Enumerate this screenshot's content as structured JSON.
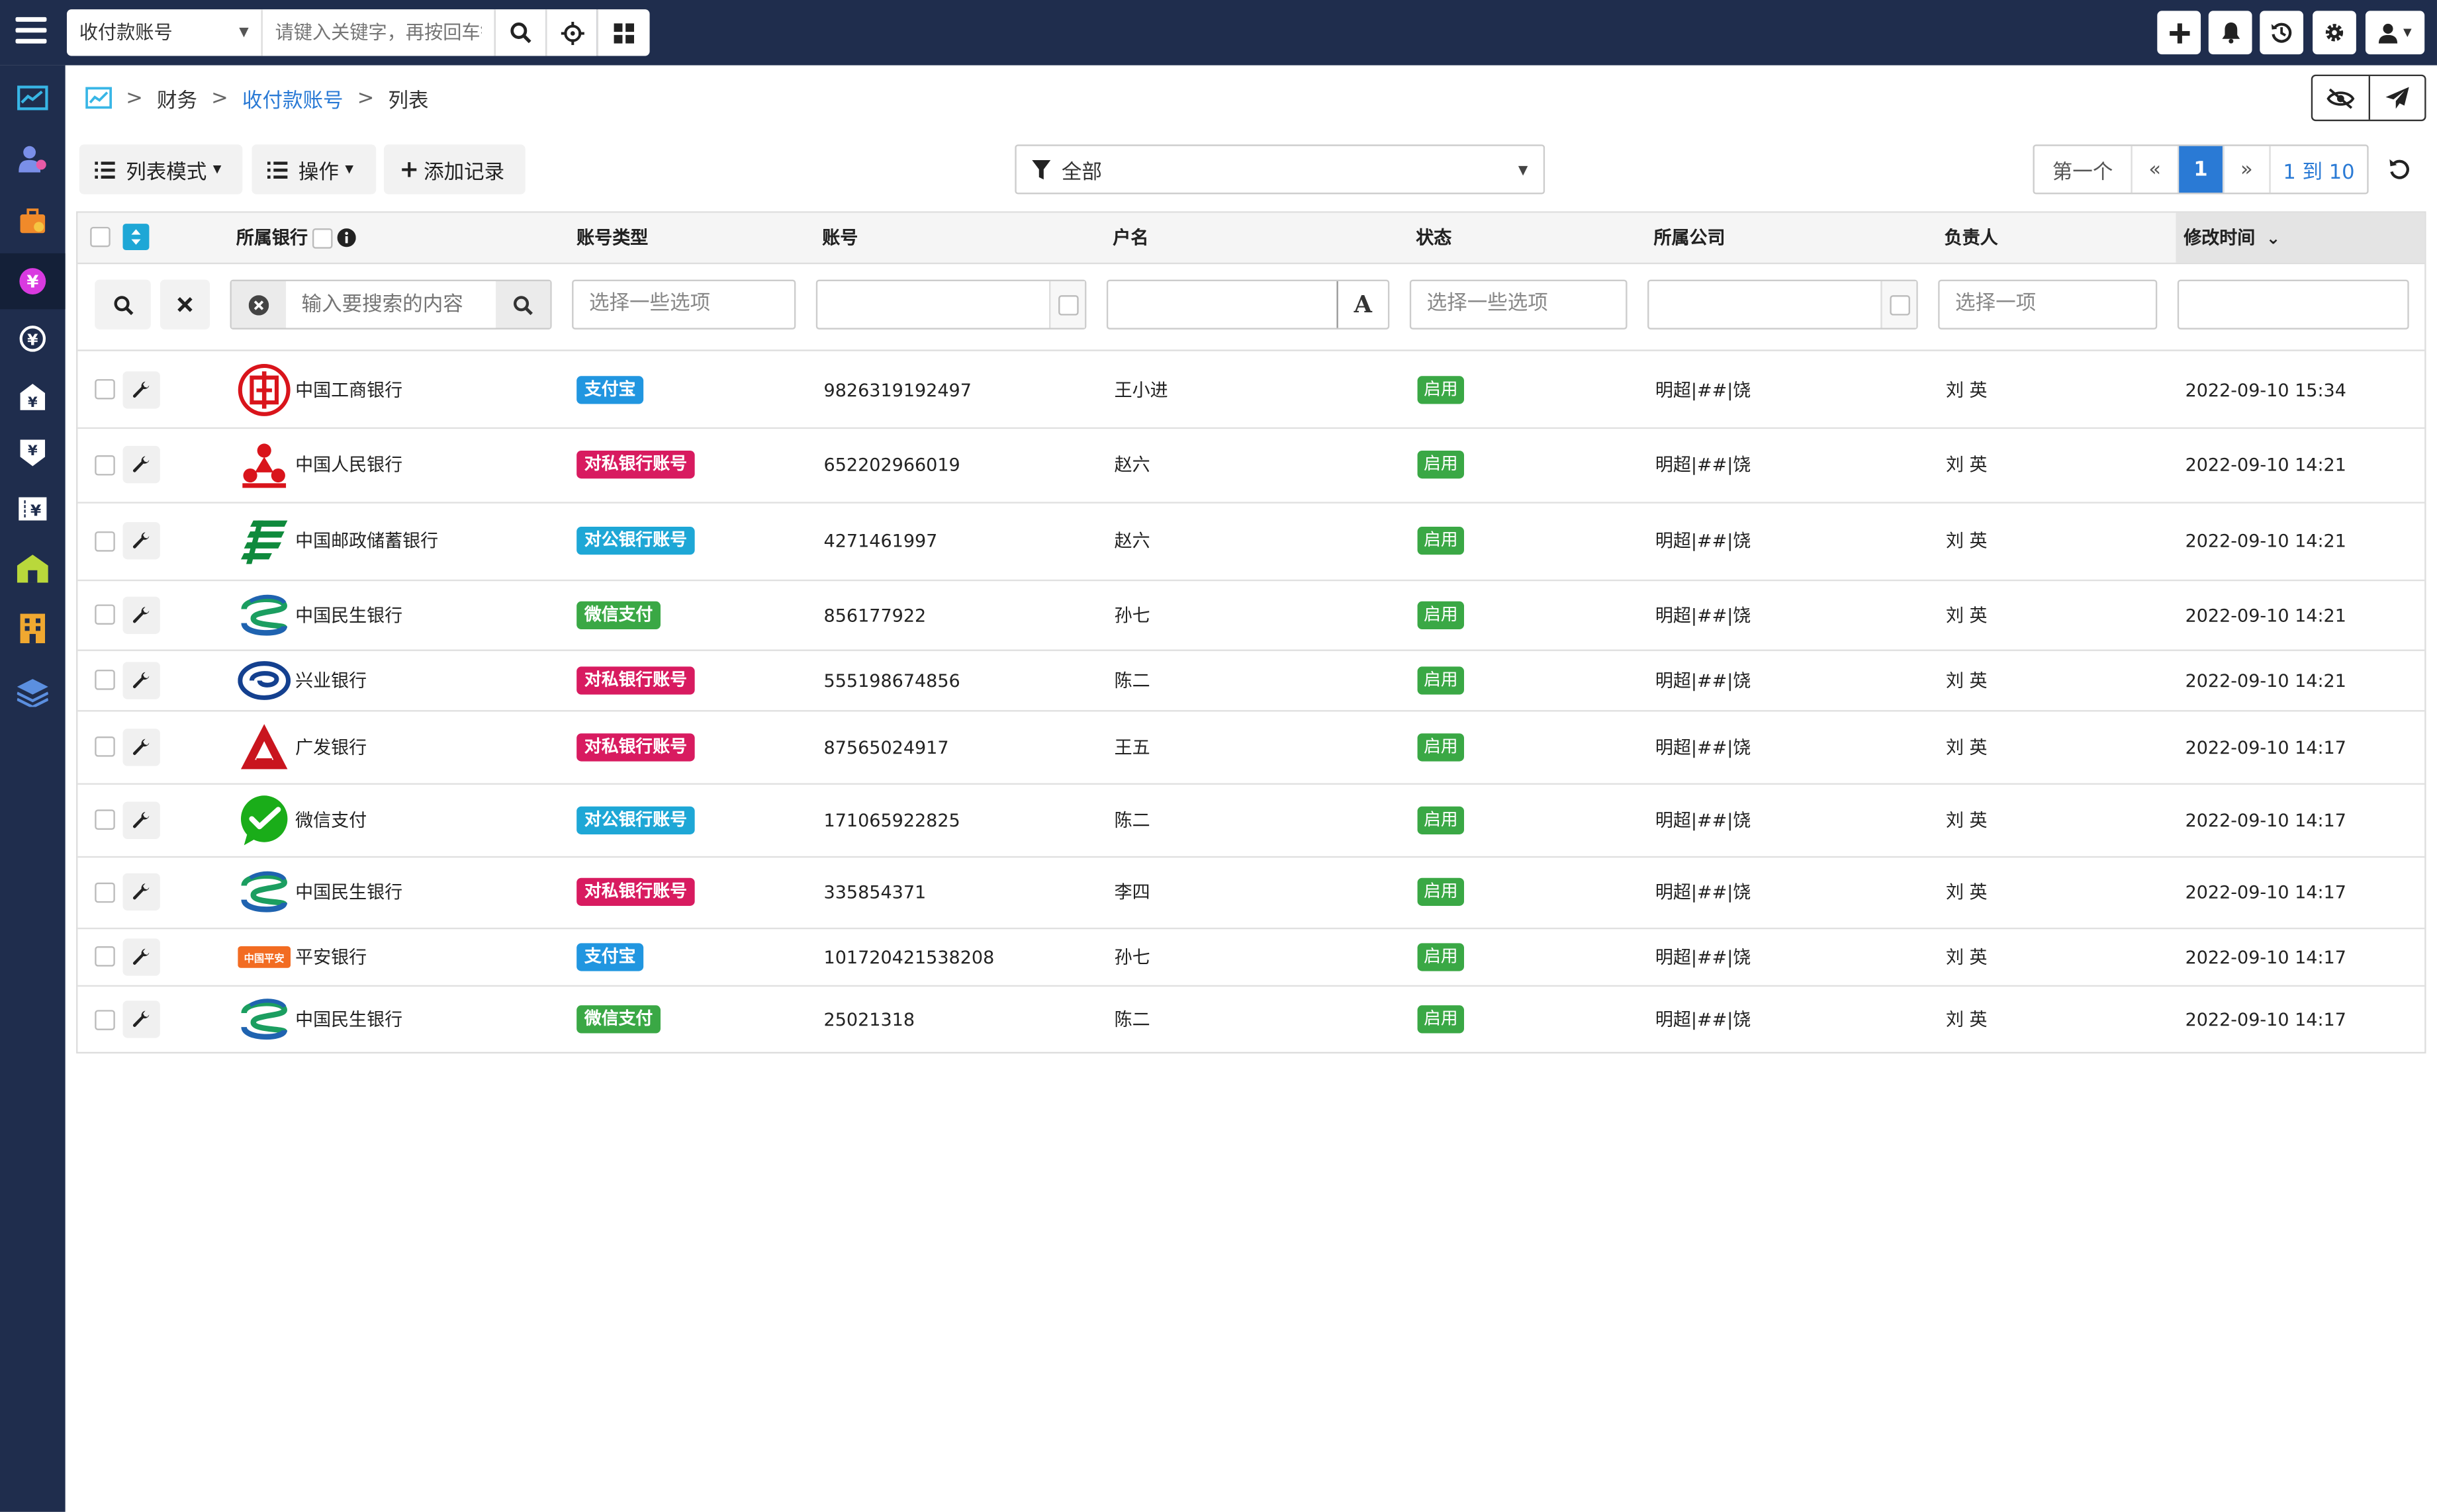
{
  "topbar": {
    "module_select": "收付款账号",
    "keyword_placeholder": "请键入关键字，再按回车键"
  },
  "breadcrumb": {
    "items": [
      "财务",
      "收付款账号",
      "列表"
    ]
  },
  "toolbar": {
    "list_mode": "列表模式",
    "operations": "操作",
    "add_record": "添加记录",
    "filter_value": "全部"
  },
  "pager": {
    "first": "第一个",
    "prev": "«",
    "current": "1",
    "next": "»",
    "range": "1 到 10"
  },
  "table": {
    "columns": {
      "bank": "所属银行",
      "type": "账号类型",
      "account": "账号",
      "holder": "户名",
      "status": "状态",
      "company": "所属公司",
      "owner": "负责人",
      "modified": "修改时间"
    },
    "filters": {
      "search_placeholder": "输入要搜索的内容",
      "type_placeholder": "选择一些选项",
      "status_placeholder": "选择一些选项",
      "owner_placeholder": "选择一项",
      "case_letter": "A"
    },
    "rows": [
      {
        "bank": "中国工商银行",
        "logo": "icbc",
        "type": "支付宝",
        "type_color": "#2196e0",
        "account": "9826319192497",
        "holder": "王小进",
        "status": "启用",
        "company": "明超|##|饶",
        "owner": "刘 英",
        "modified": "2022-09-10 15:34"
      },
      {
        "bank": "中国人民银行",
        "logo": "pbc",
        "type": "对私银行账号",
        "type_color": "#d81b60",
        "account": "652202966019",
        "holder": "赵六",
        "status": "启用",
        "company": "明超|##|饶",
        "owner": "刘 英",
        "modified": "2022-09-10 14:21"
      },
      {
        "bank": "中国邮政储蓄银行",
        "logo": "psbc",
        "type": "对公银行账号",
        "type_color": "#1ea7d6",
        "account": "4271461997",
        "holder": "赵六",
        "status": "启用",
        "company": "明超|##|饶",
        "owner": "刘 英",
        "modified": "2022-09-10 14:21"
      },
      {
        "bank": "中国民生银行",
        "logo": "cmbc",
        "type": "微信支付",
        "type_color": "#3aa845",
        "account": "856177922",
        "holder": "孙七",
        "status": "启用",
        "company": "明超|##|饶",
        "owner": "刘 英",
        "modified": "2022-09-10 14:21"
      },
      {
        "bank": "兴业银行",
        "logo": "cib",
        "type": "对私银行账号",
        "type_color": "#d81b60",
        "account": "555198674856",
        "holder": "陈二",
        "status": "启用",
        "company": "明超|##|饶",
        "owner": "刘 英",
        "modified": "2022-09-10 14:21"
      },
      {
        "bank": "广发银行",
        "logo": "cgb",
        "type": "对私银行账号",
        "type_color": "#d81b60",
        "account": "87565024917",
        "holder": "王五",
        "status": "启用",
        "company": "明超|##|饶",
        "owner": "刘 英",
        "modified": "2022-09-10 14:17"
      },
      {
        "bank": "微信支付",
        "logo": "wechat",
        "type": "对公银行账号",
        "type_color": "#1ea7d6",
        "account": "171065922825",
        "holder": "陈二",
        "status": "启用",
        "company": "明超|##|饶",
        "owner": "刘 英",
        "modified": "2022-09-10 14:17"
      },
      {
        "bank": "中国民生银行",
        "logo": "cmbc",
        "type": "对私银行账号",
        "type_color": "#d81b60",
        "account": "335854371",
        "holder": "李四",
        "status": "启用",
        "company": "明超|##|饶",
        "owner": "刘 英",
        "modified": "2022-09-10 14:17"
      },
      {
        "bank": "平安银行",
        "logo": "pingan",
        "logo_text": "中国平安",
        "type": "支付宝",
        "type_color": "#2196e0",
        "account": "101720421538208",
        "holder": "孙七",
        "status": "启用",
        "company": "明超|##|饶",
        "owner": "刘 英",
        "modified": "2022-09-10 14:17"
      },
      {
        "bank": "中国民生银行",
        "logo": "cmbc",
        "type": "微信支付",
        "type_color": "#3aa845",
        "account": "25021318",
        "holder": "陈二",
        "status": "启用",
        "company": "明超|##|饶",
        "owner": "刘 英",
        "modified": "2022-09-10 14:17"
      }
    ]
  },
  "colors": {
    "nav_bg": "#1f2d4d",
    "link": "#2a7ad5",
    "pager_active": "#2a7ad5",
    "status_green": "#3aa845"
  }
}
